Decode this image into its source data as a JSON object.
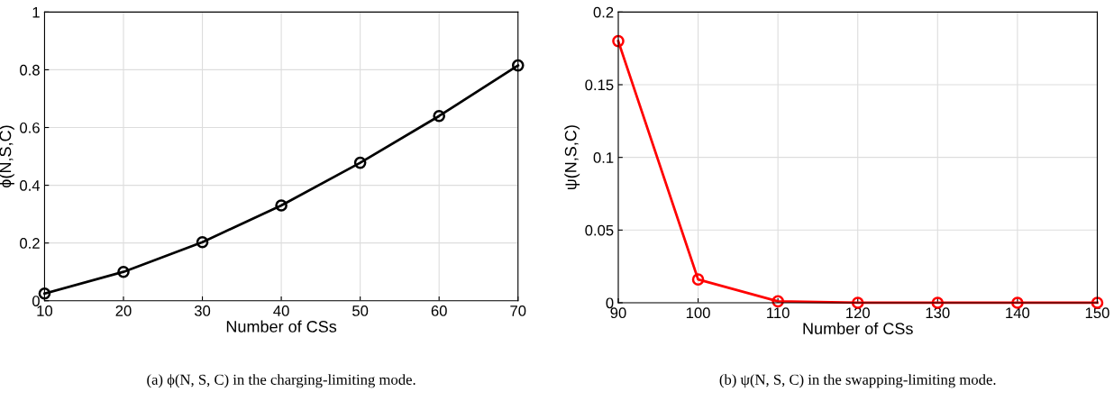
{
  "chart_data": [
    {
      "type": "line",
      "xlabel": "Number of CSs",
      "ylabel": "ϕ(N,S,C)",
      "x": [
        10,
        20,
        30,
        40,
        50,
        60,
        70
      ],
      "series": [
        {
          "color": "#000000",
          "values": [
            0.025,
            0.1,
            0.203,
            0.33,
            0.478,
            0.64,
            0.815
          ]
        }
      ],
      "xlim": [
        10,
        70
      ],
      "xticks": [
        10,
        20,
        30,
        40,
        50,
        60,
        70
      ],
      "ylim": [
        0,
        1
      ],
      "yticks": [
        0,
        0.2,
        0.4,
        0.6,
        0.8,
        1
      ],
      "grid": true,
      "marker": "circle",
      "line_style": "solid",
      "annotations": [
        "(a) ϕ(N, S, C) in the charging-limiting mode."
      ]
    },
    {
      "type": "line",
      "xlabel": "Number of CSs",
      "ylabel": "ψ(N,S,C)",
      "x": [
        90,
        100,
        110,
        120,
        130,
        140,
        150
      ],
      "series": [
        {
          "color": "#ff0000",
          "values": [
            0.18,
            0.016,
            0.001,
            0,
            0,
            0,
            0
          ]
        }
      ],
      "xlim": [
        90,
        150
      ],
      "xticks": [
        90,
        100,
        110,
        120,
        130,
        140,
        150
      ],
      "ylim": [
        0,
        0.2
      ],
      "yticks": [
        0,
        0.05,
        0.1,
        0.15,
        0.2
      ],
      "grid": true,
      "marker": "circle",
      "line_style": "solid",
      "annotations": [
        "(b) ψ(N, S, C) in the swapping-limiting mode."
      ]
    }
  ]
}
